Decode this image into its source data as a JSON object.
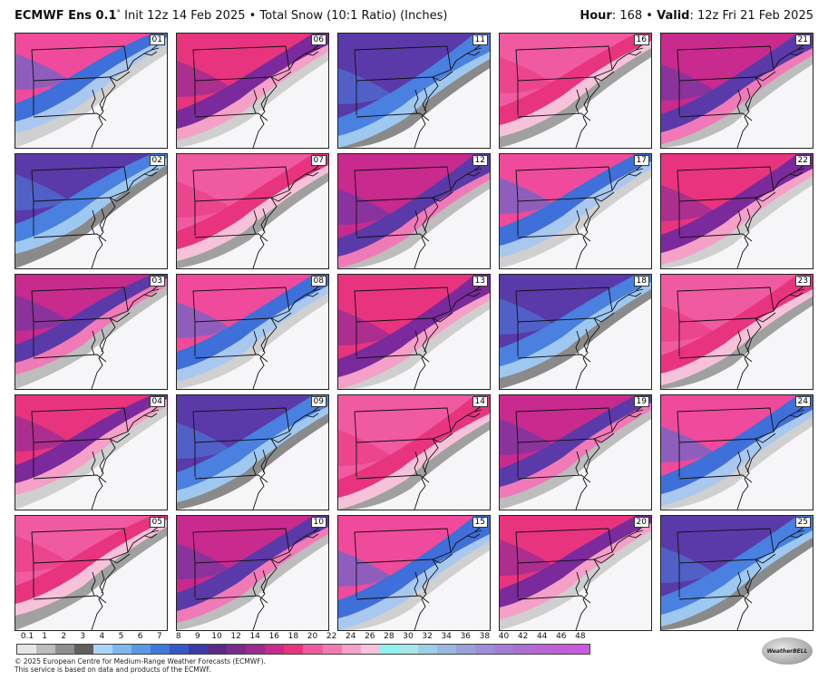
{
  "header": {
    "model": "ECMWF Ens 0.1",
    "degree": "°",
    "init_text": " Init 12z 14 Feb 2025 • Total Snow (10:1 Ratio) (Inches)",
    "hour_label": "Hour",
    "hour_value": ": 168 • ",
    "valid_label": "Valid",
    "valid_value": ": 12z Fri 21 Feb 2025"
  },
  "panels": [
    "01",
    "06",
    "11",
    "16",
    "21",
    "02",
    "07",
    "12",
    "17",
    "22",
    "03",
    "08",
    "13",
    "18",
    "23",
    "04",
    "09",
    "14",
    "19",
    "24",
    "05",
    "10",
    "15",
    "20",
    "25"
  ],
  "colorbar": {
    "ticks": [
      "0.1",
      "1",
      "2",
      "3",
      "4",
      "5",
      "6",
      "7",
      "8",
      "9",
      "10",
      "12",
      "14",
      "16",
      "18",
      "20",
      "22",
      "24",
      "26",
      "28",
      "30",
      "32",
      "34",
      "36",
      "38",
      "40",
      "42",
      "44",
      "46",
      "48"
    ],
    "colors": [
      "#e6e6e6",
      "#bdbdbd",
      "#8e8e8e",
      "#5f5f5f",
      "#a9d6f5",
      "#7fb7ef",
      "#5a98e6",
      "#3f78d8",
      "#3458c8",
      "#3a3aa8",
      "#5a2a8a",
      "#7a2a8a",
      "#9a2a8e",
      "#c82a8e",
      "#e8347e",
      "#f05aa0",
      "#f27ab4",
      "#f4a0c8",
      "#f6c2da",
      "#8ff0ee",
      "#a8e8e8",
      "#9ccfe4",
      "#9ab8e0",
      "#9aa2dc",
      "#9c8ed8",
      "#a27ed6",
      "#aa70d4",
      "#b866d4",
      "#c05ed8",
      "#ca5ae0"
    ]
  },
  "credit": {
    "line1": "© 2025 European Centre for Medium-Range Weather Forecasts (ECMWF).",
    "line2": "This service is based on data and products of the ECMWF."
  },
  "logo": {
    "text": "WeatherBELL"
  }
}
